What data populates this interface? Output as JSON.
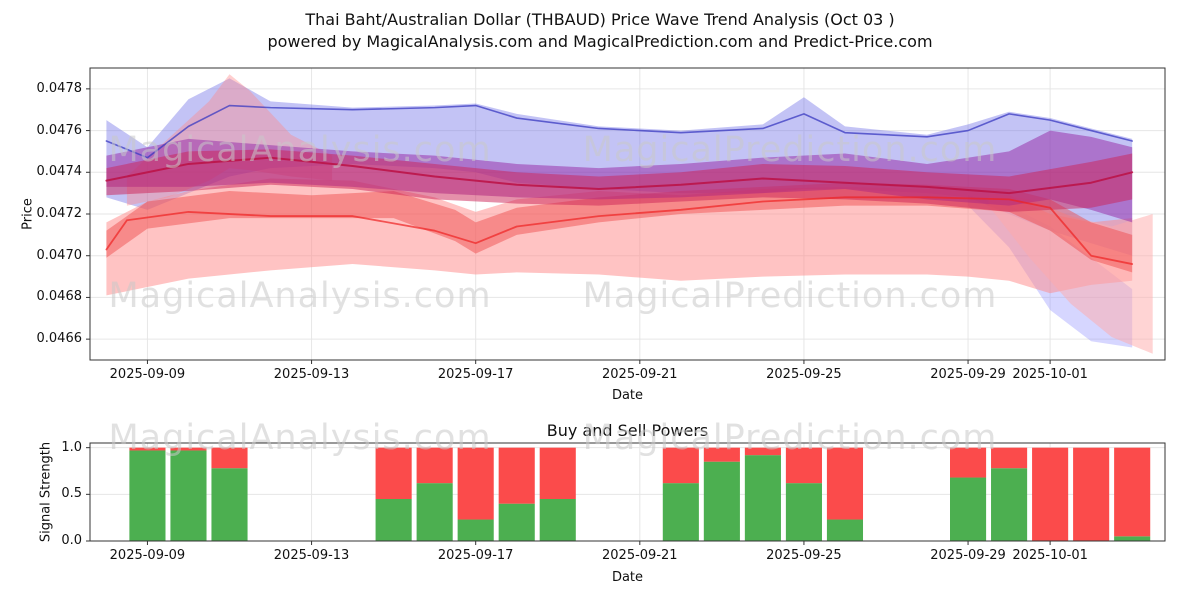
{
  "title": "Thai Baht/Australian Dollar (THBAUD) Price Wave Trend Analysis (Oct 03 )",
  "subtitle": "powered by MagicalAnalysis.com and MagicalPrediction.com and Predict-Price.com",
  "watermarks": {
    "left": "MagicalAnalysis.com",
    "right": "MagicalPrediction.com"
  },
  "chart_data": [
    {
      "type": "area",
      "name": "price-wave-trend",
      "title": "",
      "xlabel": "Date",
      "ylabel": "Price",
      "xlim": [
        -0.4,
        25.8
      ],
      "ylim": [
        0.0465,
        0.0479
      ],
      "grid": true,
      "ytick_labels": [
        "0.0466",
        "0.0468",
        "0.0470",
        "0.0472",
        "0.0474",
        "0.0476",
        "0.0478"
      ],
      "ytick_values": [
        0.0466,
        0.0468,
        0.047,
        0.0472,
        0.0474,
        0.0476,
        0.0478
      ],
      "xtick_labels": [
        "2025-09-09",
        "2025-09-13",
        "2025-09-17",
        "2025-09-21",
        "2025-09-25",
        "2025-09-29",
        "2025-10-01"
      ],
      "xtick_days": [
        1,
        5,
        9,
        13,
        17,
        21,
        23
      ],
      "bands": [
        {
          "name": "blue-outer",
          "color": "#7070e8",
          "opacity": 0.42,
          "days": [
            0,
            1,
            2,
            3,
            4,
            6,
            8,
            9,
            10,
            12,
            14,
            16,
            17,
            18,
            20,
            21,
            22,
            23,
            24,
            25
          ],
          "hi": [
            0.04765,
            0.04752,
            0.04775,
            0.04785,
            0.04774,
            0.04771,
            0.04772,
            0.04773,
            0.04768,
            0.04762,
            0.0476,
            0.04763,
            0.04776,
            0.04762,
            0.04758,
            0.04763,
            0.04769,
            0.04766,
            0.04761,
            0.04756
          ],
          "lo": [
            0.04728,
            0.04722,
            0.0473,
            0.04738,
            0.04742,
            0.04744,
            0.04742,
            0.0474,
            0.04735,
            0.04732,
            0.0473,
            0.0473,
            0.04732,
            0.04732,
            0.0473,
            0.04728,
            0.0472,
            0.04712,
            0.04706,
            0.047
          ]
        },
        {
          "name": "blue-fan-right",
          "color": "#8a8aff",
          "opacity": 0.35,
          "days": [
            21,
            22,
            23,
            24,
            25
          ],
          "hi": [
            0.04729,
            0.04724,
            0.04714,
            0.04699,
            0.04684
          ],
          "lo": [
            0.04724,
            0.04704,
            0.04674,
            0.04659,
            0.04656
          ]
        },
        {
          "name": "pink-peak-left",
          "color": "#ff8888",
          "opacity": 0.4,
          "days": [
            0.5,
            1.5,
            2.5,
            3,
            3.5,
            4.5,
            5.5
          ],
          "hi": [
            0.04738,
            0.04756,
            0.04774,
            0.04787,
            0.04779,
            0.04758,
            0.04748
          ],
          "lo": [
            0.04724,
            0.04728,
            0.04736,
            0.04742,
            0.04741,
            0.04738,
            0.04736
          ]
        },
        {
          "name": "salmon-broad",
          "color": "#ff8888",
          "opacity": 0.5,
          "days": [
            0,
            1,
            2,
            4,
            6,
            8,
            9,
            10,
            12,
            14,
            16,
            18,
            20,
            21,
            22,
            23,
            24,
            25
          ],
          "hi": [
            0.04716,
            0.04726,
            0.04731,
            0.04737,
            0.04736,
            0.04728,
            0.04721,
            0.04727,
            0.04731,
            0.04729,
            0.04732,
            0.04733,
            0.04732,
            0.04731,
            0.04729,
            0.0472,
            0.04716,
            0.04718
          ],
          "lo": [
            0.04681,
            0.04685,
            0.04689,
            0.04693,
            0.04696,
            0.04693,
            0.04691,
            0.04692,
            0.04691,
            0.04688,
            0.0469,
            0.04691,
            0.04691,
            0.0469,
            0.04688,
            0.04682,
            0.04686,
            0.04688
          ]
        },
        {
          "name": "pink-fan-right",
          "color": "#ffaaaa",
          "opacity": 0.5,
          "days": [
            21.5,
            22.5,
            23.5,
            24.5,
            25.5
          ],
          "hi": [
            0.0473,
            0.04727,
            0.04719,
            0.04714,
            0.0472
          ],
          "lo": [
            0.04724,
            0.04699,
            0.04677,
            0.04661,
            0.04653
          ]
        },
        {
          "name": "red-mid",
          "color": "#ee4444",
          "opacity": 0.45,
          "days": [
            0,
            1,
            3,
            5,
            7,
            8.5,
            9,
            10,
            12,
            14,
            16,
            18,
            20,
            22,
            23,
            24,
            25
          ],
          "hi": [
            0.04712,
            0.04726,
            0.04731,
            0.04729,
            0.04731,
            0.04722,
            0.04716,
            0.04723,
            0.04728,
            0.04731,
            0.04733,
            0.04735,
            0.04734,
            0.04732,
            0.04727,
            0.04716,
            0.0471
          ],
          "lo": [
            0.04699,
            0.04713,
            0.04718,
            0.04718,
            0.04718,
            0.04707,
            0.04701,
            0.0471,
            0.04716,
            0.0472,
            0.04722,
            0.04724,
            0.04724,
            0.04721,
            0.04712,
            0.04698,
            0.04692
          ]
        },
        {
          "name": "purple-core",
          "color": "#9933aa",
          "opacity": 0.55,
          "days": [
            0,
            2,
            4,
            6,
            8,
            10,
            12,
            14,
            16,
            18,
            20,
            22,
            23,
            24,
            25
          ],
          "hi": [
            0.04748,
            0.04756,
            0.04753,
            0.0475,
            0.04748,
            0.04744,
            0.04742,
            0.04744,
            0.04747,
            0.04749,
            0.04744,
            0.0475,
            0.0476,
            0.04757,
            0.04752
          ],
          "lo": [
            0.04733,
            0.04733,
            0.04735,
            0.04733,
            0.0473,
            0.04728,
            0.04727,
            0.04728,
            0.0473,
            0.04732,
            0.04727,
            0.04724,
            0.04727,
            0.04722,
            0.04716
          ]
        },
        {
          "name": "crimson-core",
          "color": "#cc2255",
          "opacity": 0.5,
          "days": [
            0,
            2,
            4,
            6,
            8,
            10,
            12,
            14,
            16,
            18,
            20,
            22,
            24,
            25
          ],
          "hi": [
            0.04742,
            0.0475,
            0.04751,
            0.04748,
            0.04744,
            0.0474,
            0.04738,
            0.0474,
            0.04744,
            0.04743,
            0.0474,
            0.04738,
            0.04745,
            0.04749
          ],
          "lo": [
            0.04729,
            0.04731,
            0.04734,
            0.04732,
            0.04727,
            0.04725,
            0.04724,
            0.04726,
            0.04728,
            0.04727,
            0.04725,
            0.04721,
            0.04723,
            0.04727
          ]
        }
      ],
      "lines": [
        {
          "name": "blue-top",
          "color": "#3a3ac0",
          "opacity": 0.75,
          "width": 1.6,
          "days": [
            0,
            1,
            2,
            3,
            4,
            6,
            8,
            9,
            10,
            12,
            14,
            16,
            17,
            18,
            20,
            21,
            22,
            23,
            24,
            25
          ],
          "values": [
            0.04755,
            0.04747,
            0.04762,
            0.04772,
            0.04771,
            0.0477,
            0.04771,
            0.04772,
            0.04766,
            0.04761,
            0.04759,
            0.04761,
            0.04768,
            0.04759,
            0.04757,
            0.0476,
            0.04768,
            0.04765,
            0.0476,
            0.04755
          ]
        },
        {
          "name": "crimson-mid",
          "color": "#bb1144",
          "opacity": 0.85,
          "width": 2,
          "days": [
            0,
            2,
            4,
            6,
            8,
            10,
            12,
            14,
            16,
            18,
            20,
            22,
            24,
            25
          ],
          "values": [
            0.04736,
            0.04744,
            0.04747,
            0.04743,
            0.04738,
            0.04734,
            0.04732,
            0.04734,
            0.04737,
            0.04735,
            0.04733,
            0.0473,
            0.04735,
            0.0474
          ]
        },
        {
          "name": "red-lower",
          "color": "#ee2222",
          "opacity": 0.7,
          "width": 1.8,
          "days": [
            0,
            0.5,
            2,
            4,
            6,
            8,
            9,
            10,
            12,
            14,
            16,
            18,
            20,
            22,
            23,
            24,
            25
          ],
          "values": [
            0.04703,
            0.04717,
            0.04721,
            0.04719,
            0.04719,
            0.04712,
            0.04706,
            0.04714,
            0.04719,
            0.04722,
            0.04726,
            0.04728,
            0.04728,
            0.04727,
            0.04723,
            0.047,
            0.04696
          ]
        }
      ]
    },
    {
      "type": "bar",
      "name": "buy-sell-powers",
      "title": "Buy and Sell Powers",
      "xlabel": "Date",
      "ylabel": "Signal Strength",
      "ylim": [
        0,
        1.05
      ],
      "grid": true,
      "ytick_labels": [
        "0.0",
        "0.5",
        "1.0"
      ],
      "ytick_values": [
        0.0,
        0.5,
        1.0
      ],
      "xtick_labels": [
        "2025-09-09",
        "2025-09-13",
        "2025-09-17",
        "2025-09-21",
        "2025-09-25",
        "2025-09-29",
        "2025-10-01"
      ],
      "xtick_days": [
        1,
        5,
        9,
        13,
        17,
        21,
        23
      ],
      "buy_color": "#4caf50",
      "sell_color": "#fb4b4b",
      "series_names": [
        "buy",
        "sell"
      ],
      "bars": [
        {
          "date": "2025-09-09",
          "day": 1,
          "buy": 0.97,
          "sell": 0.03
        },
        {
          "date": "2025-09-10",
          "day": 2,
          "buy": 0.97,
          "sell": 0.03
        },
        {
          "date": "2025-09-11",
          "day": 3,
          "buy": 0.78,
          "sell": 0.22
        },
        {
          "date": "2025-09-15",
          "day": 7,
          "buy": 0.45,
          "sell": 0.55
        },
        {
          "date": "2025-09-16",
          "day": 8,
          "buy": 0.62,
          "sell": 0.38
        },
        {
          "date": "2025-09-17",
          "day": 9,
          "buy": 0.23,
          "sell": 0.77
        },
        {
          "date": "2025-09-18",
          "day": 10,
          "buy": 0.4,
          "sell": 0.6
        },
        {
          "date": "2025-09-19",
          "day": 11,
          "buy": 0.45,
          "sell": 0.55
        },
        {
          "date": "2025-09-22",
          "day": 14,
          "buy": 0.62,
          "sell": 0.38
        },
        {
          "date": "2025-09-23",
          "day": 15,
          "buy": 0.85,
          "sell": 0.15
        },
        {
          "date": "2025-09-24",
          "day": 16,
          "buy": 0.92,
          "sell": 0.08
        },
        {
          "date": "2025-09-25",
          "day": 17,
          "buy": 0.62,
          "sell": 0.38
        },
        {
          "date": "2025-09-26",
          "day": 18,
          "buy": 0.23,
          "sell": 0.77
        },
        {
          "date": "2025-09-29",
          "day": 21,
          "buy": 0.68,
          "sell": 0.32
        },
        {
          "date": "2025-09-30",
          "day": 22,
          "buy": 0.78,
          "sell": 0.22
        },
        {
          "date": "2025-10-01",
          "day": 23,
          "buy": 0.0,
          "sell": 1.0
        },
        {
          "date": "2025-10-02",
          "day": 24,
          "buy": 0.0,
          "sell": 1.0
        },
        {
          "date": "2025-10-03",
          "day": 25,
          "buy": 0.05,
          "sell": 0.95
        }
      ]
    }
  ]
}
